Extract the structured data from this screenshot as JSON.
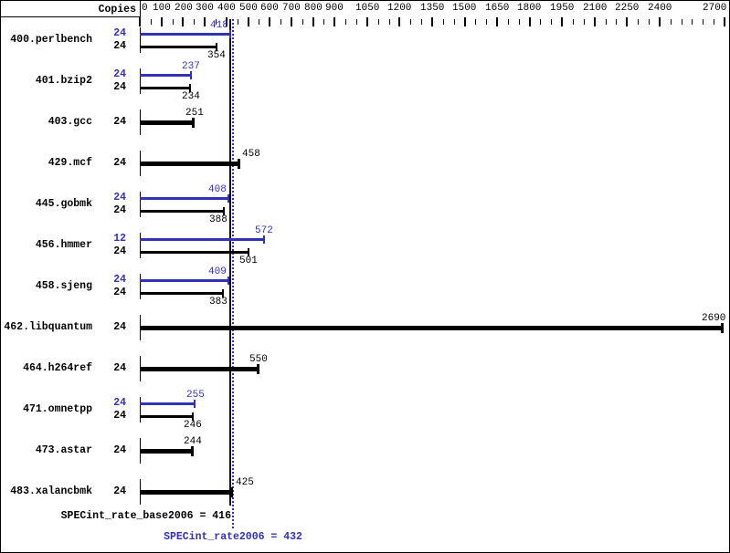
{
  "colors": {
    "peak_blue": "#3232b4",
    "base_black": "#000000",
    "background": "#ffffff"
  },
  "chart_data": {
    "type": "bar",
    "orientation": "horizontal",
    "copies_header": "Copies",
    "x_axis": {
      "min": 0,
      "max": 2700,
      "major_ticks": [
        0,
        100,
        200,
        300,
        400,
        500,
        600,
        700,
        800,
        900,
        1050,
        1200,
        1350,
        1500,
        1650,
        1800,
        1950,
        2100,
        2250,
        2400,
        2700
      ],
      "minor_tick_step": 50,
      "grid": false
    },
    "benchmarks": [
      {
        "name": "400.perlbench",
        "rows": [
          {
            "kind": "peak",
            "copies": 24,
            "value": 418
          },
          {
            "kind": "base",
            "copies": 24,
            "value": 354
          }
        ]
      },
      {
        "name": "401.bzip2",
        "rows": [
          {
            "kind": "peak",
            "copies": 24,
            "value": 237
          },
          {
            "kind": "base",
            "copies": 24,
            "value": 234
          }
        ]
      },
      {
        "name": "403.gcc",
        "rows": [
          {
            "kind": "single",
            "copies": 24,
            "value": 251
          }
        ]
      },
      {
        "name": "429.mcf",
        "rows": [
          {
            "kind": "single",
            "copies": 24,
            "value": 458
          }
        ]
      },
      {
        "name": "445.gobmk",
        "rows": [
          {
            "kind": "peak",
            "copies": 24,
            "value": 408
          },
          {
            "kind": "base",
            "copies": 24,
            "value": 388
          }
        ]
      },
      {
        "name": "456.hmmer",
        "rows": [
          {
            "kind": "peak",
            "copies": 12,
            "value": 572
          },
          {
            "kind": "base",
            "copies": 24,
            "value": 501
          }
        ]
      },
      {
        "name": "458.sjeng",
        "rows": [
          {
            "kind": "peak",
            "copies": 24,
            "value": 409
          },
          {
            "kind": "base",
            "copies": 24,
            "value": 383
          }
        ]
      },
      {
        "name": "462.libquantum",
        "rows": [
          {
            "kind": "single",
            "copies": 24,
            "value": 2690
          }
        ]
      },
      {
        "name": "464.h264ref",
        "rows": [
          {
            "kind": "single",
            "copies": 24,
            "value": 550
          }
        ]
      },
      {
        "name": "471.omnetpp",
        "rows": [
          {
            "kind": "peak",
            "copies": 24,
            "value": 255
          },
          {
            "kind": "base",
            "copies": 24,
            "value": 246
          }
        ]
      },
      {
        "name": "473.astar",
        "rows": [
          {
            "kind": "single",
            "copies": 24,
            "value": 244
          }
        ]
      },
      {
        "name": "483.xalancbmk",
        "rows": [
          {
            "kind": "single",
            "copies": 24,
            "value": 425
          }
        ]
      }
    ],
    "reference_lines": [
      {
        "name": "base",
        "value": 416,
        "style": "solid",
        "color": "#000000"
      },
      {
        "name": "peak",
        "value": 432,
        "style": "dotted",
        "color": "#3232b4"
      }
    ],
    "summary": [
      {
        "name": "base",
        "text": "SPECint_rate_base2006 = 416",
        "metric": "SPECint_rate_base2006",
        "value": 416
      },
      {
        "name": "peak",
        "text": "SPECint_rate2006 = 432",
        "metric": "SPECint_rate2006",
        "value": 432
      }
    ]
  }
}
